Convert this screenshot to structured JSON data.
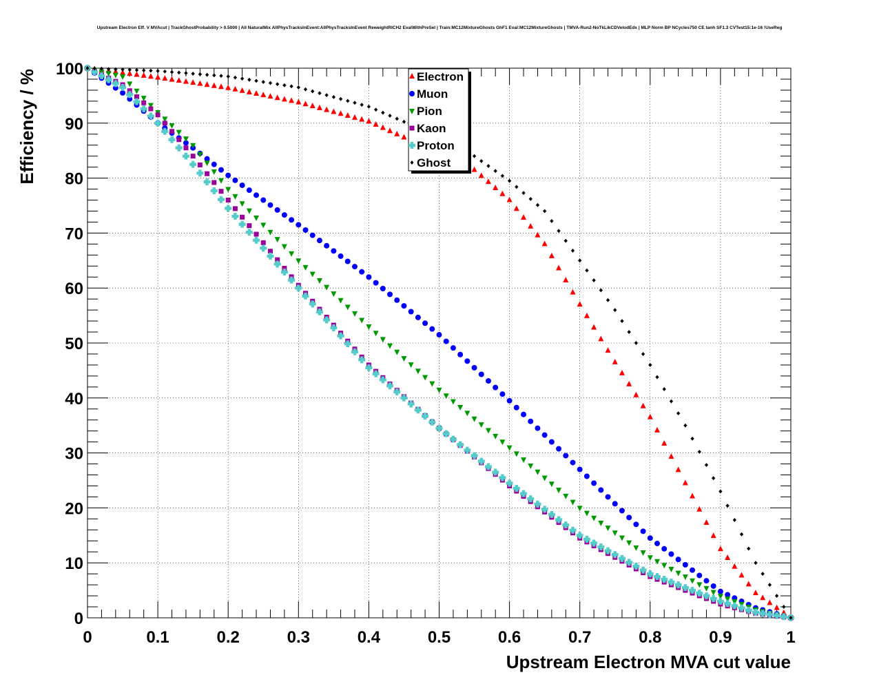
{
  "chart_data": {
    "type": "scatter",
    "title": "Upstream Electron Eff. V MVAcut | TrackGhostProbability > 0.5000 | All NaturalMix AllPhysTracksInEvent:AllPhysTracksInEvent ReweightRICH2 EvalWithPreSel | Train:MC12MixtureGhosts GhF1 Eval:MC12MixtureGhosts | TMVA-Run2-NoTkLikCDVelodEdx | MLP Norm BP NCycles750 CE tanh SF1.3 CVTest15:1e-16 !UseReg",
    "xlabel": "Upstream Electron MVA cut value",
    "ylabel": "Efficiency / %",
    "xlim": [
      0,
      1
    ],
    "ylim": [
      0,
      100
    ],
    "xticks": [
      "0",
      "0.1",
      "0.2",
      "0.3",
      "0.4",
      "0.5",
      "0.6",
      "0.7",
      "0.8",
      "0.9",
      "1"
    ],
    "yticks": [
      "0",
      "10",
      "20",
      "30",
      "40",
      "50",
      "60",
      "70",
      "80",
      "90",
      "100"
    ],
    "grid": true,
    "legend_position": "top-center",
    "sample_step": 0.01,
    "series": [
      {
        "name": "Electron",
        "color": "#ff0000",
        "marker": "triangle-up",
        "anchors": [
          [
            0,
            100
          ],
          [
            0.1,
            98.3
          ],
          [
            0.2,
            96.4
          ],
          [
            0.3,
            93.8
          ],
          [
            0.4,
            90.3
          ],
          [
            0.5,
            84.5
          ],
          [
            0.55,
            81.5
          ],
          [
            0.6,
            76
          ],
          [
            0.65,
            68
          ],
          [
            0.7,
            57
          ],
          [
            0.75,
            46.5
          ],
          [
            0.8,
            36.5
          ],
          [
            0.85,
            24.5
          ],
          [
            0.9,
            12.5
          ],
          [
            0.95,
            4.5
          ],
          [
            1,
            0
          ]
        ]
      },
      {
        "name": "Muon",
        "color": "#0000ff",
        "marker": "circle",
        "anchors": [
          [
            0,
            100
          ],
          [
            0.05,
            95.5
          ],
          [
            0.1,
            90
          ],
          [
            0.15,
            85.5
          ],
          [
            0.2,
            80.5
          ],
          [
            0.3,
            71.5
          ],
          [
            0.4,
            62
          ],
          [
            0.5,
            51.5
          ],
          [
            0.6,
            39.5
          ],
          [
            0.7,
            27
          ],
          [
            0.8,
            14.5
          ],
          [
            0.9,
            4.8
          ],
          [
            0.95,
            1.8
          ],
          [
            1,
            0
          ]
        ]
      },
      {
        "name": "Pion",
        "color": "#009900",
        "marker": "triangle-down",
        "anchors": [
          [
            0,
            100
          ],
          [
            0.05,
            98.5
          ],
          [
            0.1,
            92
          ],
          [
            0.15,
            86
          ],
          [
            0.2,
            78
          ],
          [
            0.3,
            65
          ],
          [
            0.4,
            53
          ],
          [
            0.5,
            41.5
          ],
          [
            0.6,
            31
          ],
          [
            0.7,
            20
          ],
          [
            0.8,
            11
          ],
          [
            0.9,
            4
          ],
          [
            0.95,
            1.5
          ],
          [
            1,
            0
          ]
        ]
      },
      {
        "name": "Kaon",
        "color": "#990099",
        "marker": "square",
        "anchors": [
          [
            0,
            100
          ],
          [
            0.05,
            97
          ],
          [
            0.1,
            91.5
          ],
          [
            0.15,
            84
          ],
          [
            0.2,
            76
          ],
          [
            0.3,
            60.5
          ],
          [
            0.4,
            46
          ],
          [
            0.5,
            34.5
          ],
          [
            0.6,
            24
          ],
          [
            0.7,
            14.5
          ],
          [
            0.8,
            7.5
          ],
          [
            0.9,
            2.5
          ],
          [
            0.95,
            0.8
          ],
          [
            1,
            0
          ]
        ]
      },
      {
        "name": "Proton",
        "color": "#55cccc",
        "marker": "cross",
        "anchors": [
          [
            0,
            100
          ],
          [
            0.05,
            96.5
          ],
          [
            0.1,
            90
          ],
          [
            0.15,
            82.5
          ],
          [
            0.2,
            74.5
          ],
          [
            0.3,
            60
          ],
          [
            0.4,
            45.5
          ],
          [
            0.5,
            34.5
          ],
          [
            0.6,
            24.5
          ],
          [
            0.7,
            15
          ],
          [
            0.8,
            8
          ],
          [
            0.9,
            3
          ],
          [
            0.95,
            1
          ],
          [
            1,
            0
          ]
        ]
      },
      {
        "name": "Ghost",
        "color": "#000000",
        "marker": "diamond",
        "anchors": [
          [
            0,
            100
          ],
          [
            0.1,
            99.5
          ],
          [
            0.2,
            98.5
          ],
          [
            0.3,
            96.5
          ],
          [
            0.4,
            93
          ],
          [
            0.5,
            87.5
          ],
          [
            0.55,
            84
          ],
          [
            0.6,
            79.5
          ],
          [
            0.65,
            74
          ],
          [
            0.7,
            65
          ],
          [
            0.75,
            56
          ],
          [
            0.8,
            46
          ],
          [
            0.85,
            35
          ],
          [
            0.9,
            23
          ],
          [
            0.95,
            10
          ],
          [
            1,
            0
          ]
        ]
      }
    ]
  }
}
